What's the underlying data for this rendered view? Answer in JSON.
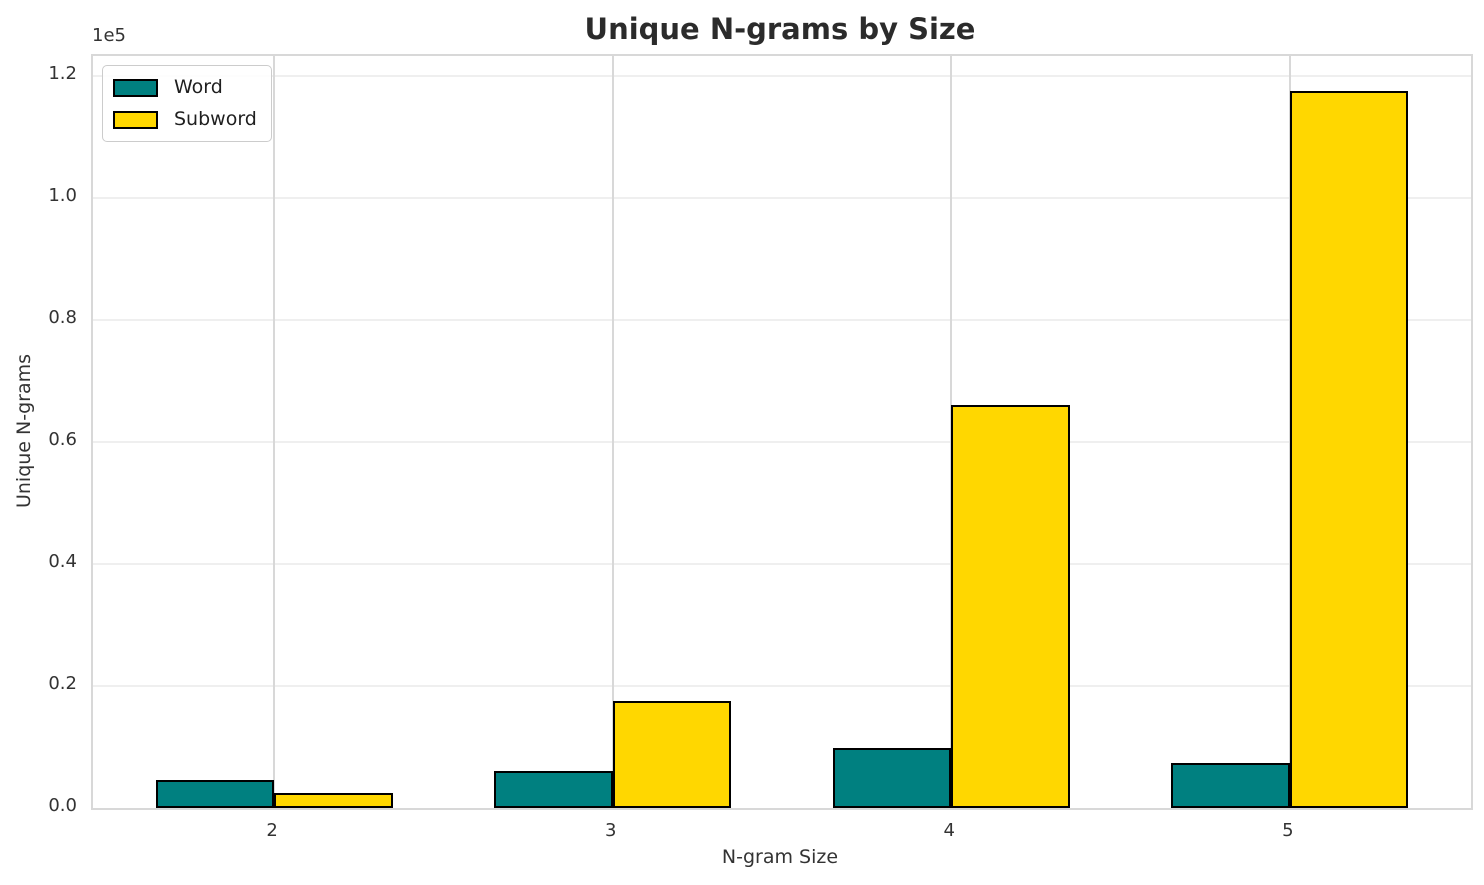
{
  "figure": {
    "title": "Unique N-grams by Size",
    "xlabel": "N-gram Size",
    "ylabel": "Unique N-grams",
    "offset_text": "1e5"
  },
  "legend": {
    "items": [
      {
        "label": "Word",
        "color": "#008080"
      },
      {
        "label": "Subword",
        "color": "#FFD700"
      }
    ]
  },
  "chart_data": {
    "type": "bar",
    "title": "Unique N-grams by Size",
    "xlabel": "N-gram Size",
    "ylabel": "Unique N-grams",
    "scale_offset": "1e5",
    "categories": [
      "2",
      "3",
      "4",
      "5"
    ],
    "series": [
      {
        "name": "Word",
        "color": "#008080",
        "values": [
          4600,
          6100,
          9800,
          7300
        ]
      },
      {
        "name": "Subword",
        "color": "#FFD700",
        "values": [
          2400,
          17500,
          66000,
          117600
        ]
      }
    ],
    "bar_edge_color": "#000000",
    "bar_width": 0.35,
    "xlim": [
      -0.535,
      3.535
    ],
    "ylim": [
      0,
      123300
    ],
    "yticks": [
      {
        "value": 0,
        "label": "0.0"
      },
      {
        "value": 20000,
        "label": "0.2"
      },
      {
        "value": 40000,
        "label": "0.4"
      },
      {
        "value": 60000,
        "label": "0.6"
      },
      {
        "value": 80000,
        "label": "0.8"
      },
      {
        "value": 100000,
        "label": "1.0"
      },
      {
        "value": 120000,
        "label": "1.2"
      }
    ],
    "grid": true,
    "legend_position": "upper left"
  }
}
